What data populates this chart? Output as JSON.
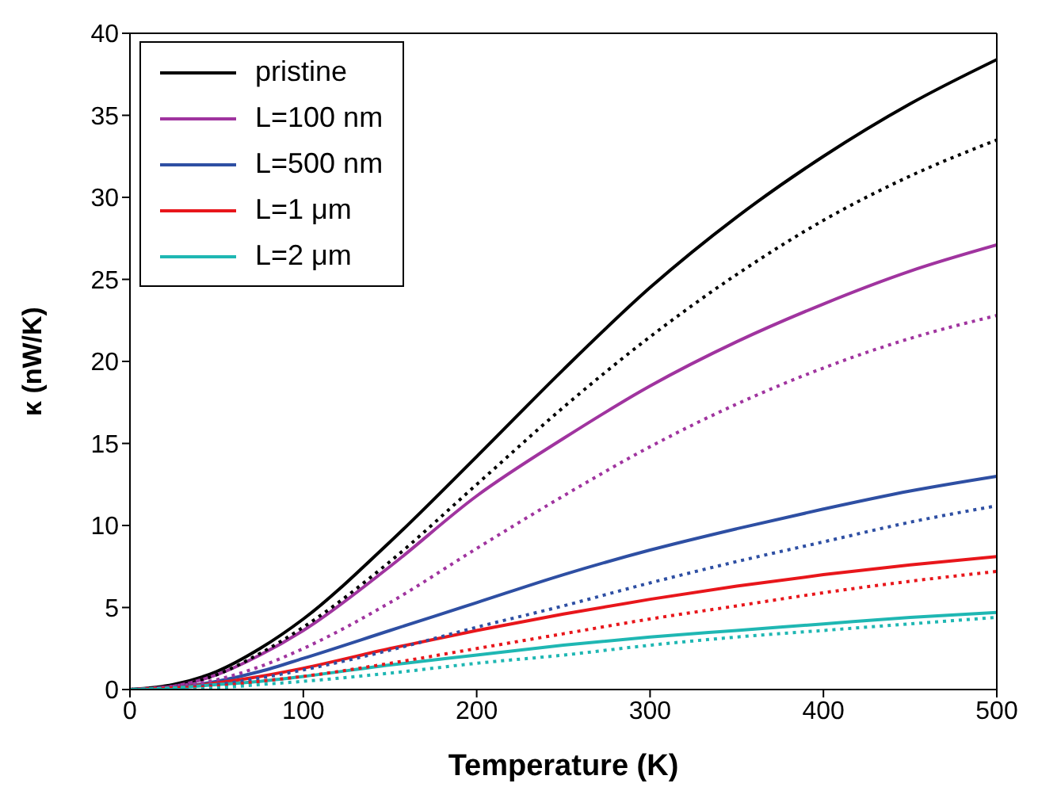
{
  "chart_data": {
    "type": "line",
    "xlabel": "Temperature (K)",
    "ylabel": "κ (nW/K)",
    "x": [
      0,
      25,
      50,
      75,
      100,
      150,
      200,
      250,
      300,
      350,
      400,
      450,
      500
    ],
    "xlim": [
      0,
      500
    ],
    "xticks": [
      0,
      100,
      200,
      300,
      400,
      500
    ],
    "ylim": [
      0,
      40
    ],
    "yticks": [
      0,
      5,
      10,
      15,
      20,
      25,
      30,
      35,
      40
    ],
    "grid": false,
    "legend": "top left",
    "marker": "none",
    "series": [
      {
        "name": "pristine",
        "color": "#000000",
        "line_style": "solid",
        "values": [
          0,
          0.3,
          1.1,
          2.5,
          4.3,
          9,
          14.2,
          19.5,
          24.5,
          28.8,
          32.5,
          35.7,
          38.4
        ]
      },
      {
        "name": "L=100 nm",
        "color": "#a0349f",
        "line_style": "solid",
        "values": [
          0,
          0.2,
          0.9,
          2.1,
          3.6,
          7.5,
          11.8,
          15.3,
          18.5,
          21.2,
          23.5,
          25.5,
          27.1
        ]
      },
      {
        "name": "L=500 nm",
        "color": "#2e4fa3",
        "line_style": "solid",
        "values": [
          0,
          0.1,
          0.5,
          1.1,
          1.9,
          3.6,
          5.3,
          7.0,
          8.5,
          9.8,
          11.0,
          12.1,
          13.0
        ]
      },
      {
        "name": "L=1 μm",
        "color": "#e8161b",
        "line_style": "solid",
        "values": [
          0,
          0.1,
          0.4,
          0.8,
          1.3,
          2.5,
          3.6,
          4.6,
          5.5,
          6.3,
          7.0,
          7.6,
          8.1
        ]
      },
      {
        "name": "L=2 μm",
        "color": "#1fb7b3",
        "line_style": "solid",
        "values": [
          0,
          0.1,
          0.3,
          0.5,
          0.8,
          1.5,
          2.1,
          2.7,
          3.2,
          3.6,
          4.0,
          4.4,
          4.7
        ]
      },
      {
        "color": "#000000",
        "line_style": "dotted",
        "values": [
          0,
          0.2,
          0.9,
          2.2,
          3.8,
          7.8,
          12.5,
          17.2,
          21.5,
          25.3,
          28.6,
          31.3,
          33.5
        ]
      },
      {
        "color": "#a0349f",
        "line_style": "dotted",
        "values": [
          0,
          0.2,
          0.6,
          1.4,
          2.5,
          5.3,
          8.6,
          11.8,
          14.8,
          17.4,
          19.6,
          21.4,
          22.8
        ]
      },
      {
        "color": "#2e4fa3",
        "line_style": "dotted",
        "values": [
          0,
          0.1,
          0.3,
          0.7,
          1.2,
          2.4,
          3.8,
          5.1,
          6.5,
          7.8,
          9.0,
          10.2,
          11.2
        ]
      },
      {
        "color": "#e8161b",
        "line_style": "dotted",
        "values": [
          0,
          0.1,
          0.2,
          0.5,
          0.8,
          1.6,
          2.5,
          3.4,
          4.3,
          5.1,
          5.9,
          6.6,
          7.2
        ]
      },
      {
        "color": "#1fb7b3",
        "line_style": "dotted",
        "values": [
          0,
          0,
          0.1,
          0.3,
          0.5,
          1.0,
          1.6,
          2.1,
          2.7,
          3.2,
          3.6,
          4.0,
          4.4
        ]
      }
    ]
  }
}
